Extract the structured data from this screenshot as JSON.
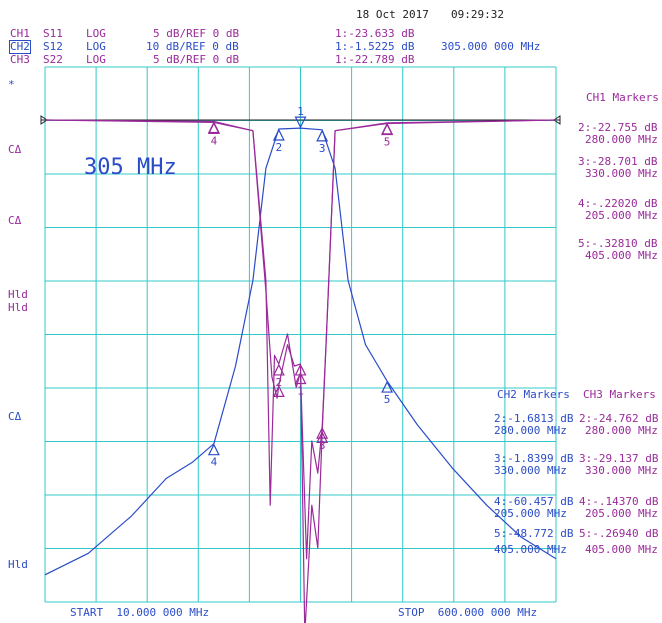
{
  "header": {
    "date": "18 Oct 2017",
    "time": "09:29:32",
    "channels": [
      {
        "ch": "CH1",
        "param": "S11",
        "format": "LOG",
        "scale": "5 dB/REF 0 dB",
        "marker": "1:-23.633 dB",
        "active": false
      },
      {
        "ch": "CH2",
        "param": "S12",
        "format": "LOG",
        "scale": "10 dB/REF 0 dB",
        "marker": "1:-1.5225 dB",
        "active": true
      },
      {
        "ch": "CH3",
        "param": "S22",
        "format": "LOG",
        "scale": "5 dB/REF 0 dB",
        "marker": "1:-22.789 dB",
        "active": false
      }
    ],
    "marker_freq": "305.000 000 MHz"
  },
  "left_labels": {
    "star": "*",
    "c1": "CΔ",
    "c2": "CΔ",
    "h1": "Hld",
    "h2": "Hld",
    "c3": "CΔ",
    "h3": "Hld"
  },
  "annotation": "305 MHz",
  "footer": {
    "start": "START  10.000 000 MHz",
    "stop": "STOP  600.000 000 MHz"
  },
  "ch1_markers": {
    "title": "CH1 Markers",
    "entries": [
      {
        "value": "2:-22.755 dB",
        "freq": "280.000 MHz"
      },
      {
        "value": "3:-28.701 dB",
        "freq": "330.000 MHz"
      },
      {
        "value": "4:-.22020 dB",
        "freq": "205.000 MHz"
      },
      {
        "value": "5:-.32810 dB",
        "freq": "405.000 MHz"
      }
    ]
  },
  "ch2_markers": {
    "title": "CH2 Markers",
    "entries": [
      {
        "value": "2:-1.6813 dB",
        "freq": "280.000 MHz"
      },
      {
        "value": "3:-1.8399 dB",
        "freq": "330.000 MHz"
      },
      {
        "value": "4:-60.457 dB",
        "freq": "205.000 MHz"
      },
      {
        "value": "5:-48.772 dB",
        "freq": "405.000 MHz"
      }
    ]
  },
  "ch3_markers": {
    "title": "CH3 Markers",
    "entries": [
      {
        "value": "2:-24.762 dB",
        "freq": "280.000 MHz"
      },
      {
        "value": "3:-29.137 dB",
        "freq": "330.000 MHz"
      },
      {
        "value": "4:-.14370 dB",
        "freq": "205.000 MHz"
      },
      {
        "value": "5:-.26940 dB",
        "freq": "405.000 MHz"
      }
    ]
  },
  "colors": {
    "grid": "#33c8c8",
    "s12": "#2a4cc8",
    "s11_s22": "#9a2a9a",
    "reference": "#222222"
  },
  "chart_data": {
    "type": "line",
    "x_unit": "MHz",
    "xlim": [
      10,
      600
    ],
    "grid_divisions": [
      10,
      10
    ],
    "grid": true,
    "series": [
      {
        "name": "S12",
        "scale_db_per_div": 10,
        "ref_db": 0,
        "x": [
          10,
          60,
          110,
          150,
          180,
          205,
          230,
          250,
          265,
          280,
          305,
          330,
          345,
          360,
          380,
          405,
          440,
          480,
          520,
          560,
          600
        ],
        "y": [
          -85,
          -81,
          -74,
          -67,
          -64,
          -60.5,
          -46,
          -30,
          -9,
          -1.68,
          -1.52,
          -1.84,
          -9,
          -30,
          -42,
          -48.8,
          -57,
          -65,
          -72,
          -78,
          -82
        ]
      },
      {
        "name": "S11",
        "scale_db_per_div": 5,
        "ref_db": 0,
        "x": [
          10,
          205,
          250,
          265,
          270,
          275,
          280,
          290,
          300,
          305,
          312,
          318,
          325,
          330,
          335,
          345,
          405,
          600
        ],
        "y": [
          0,
          -0.22,
          -1,
          -15,
          -36,
          -22,
          -22.8,
          -20,
          -25,
          -23.6,
          -41,
          -30,
          -33,
          -28.7,
          -20,
          -1,
          -0.33,
          0
        ]
      },
      {
        "name": "S22",
        "scale_db_per_div": 5,
        "ref_db": 0,
        "x": [
          10,
          205,
          250,
          265,
          272,
          278,
          280,
          290,
          298,
          305,
          310,
          318,
          325,
          330,
          335,
          345,
          405,
          600
        ],
        "y": [
          0,
          -0.14,
          -1,
          -16,
          -24,
          -26,
          -24.8,
          -21,
          -23,
          -22.8,
          -48,
          -36,
          -40,
          -29.1,
          -20,
          -1,
          -0.27,
          0
        ]
      }
    ],
    "markers": [
      {
        "id": "1",
        "x": 305
      },
      {
        "id": "2",
        "x": 280
      },
      {
        "id": "3",
        "x": 330
      },
      {
        "id": "4",
        "x": 205
      },
      {
        "id": "5",
        "x": 405
      }
    ],
    "reference_line_db": 0
  }
}
